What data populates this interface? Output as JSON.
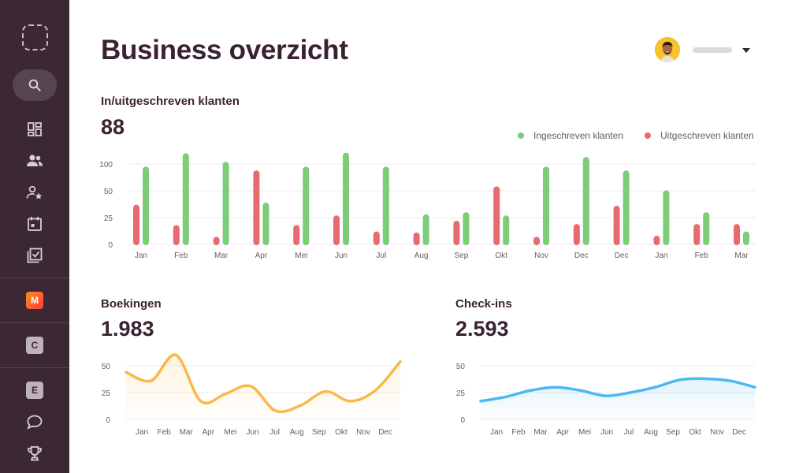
{
  "header": {
    "title": "Business overzicht"
  },
  "colors": {
    "green": "#7ecb78",
    "red": "#e86a6e",
    "orange": "#fbb848",
    "blue": "#4cb8f4",
    "sidebar": "#3b2834"
  },
  "sidebar": {
    "icons": [
      "logo-placeholder",
      "search-icon",
      "dashboard-icon",
      "users-icon",
      "user-star-icon",
      "calendar-icon",
      "checklist-icon"
    ],
    "badges": [
      "M",
      "C",
      "E"
    ],
    "bottom_icons": [
      "chat-icon",
      "trophy-icon"
    ]
  },
  "klanten": {
    "title": "In/uitgeschreven klanten",
    "value": "88",
    "legend_in": "Ingeschreven klanten",
    "legend_out": "Uitgeschreven klanten"
  },
  "boekingen": {
    "title": "Boekingen",
    "value": "1.983"
  },
  "checkins": {
    "title": "Check-ins",
    "value": "2.593"
  },
  "chart_data": [
    {
      "type": "bar",
      "categories": [
        "Jan",
        "Feb",
        "Mar",
        "Apr",
        "Mei",
        "Jun",
        "Jul",
        "Aug",
        "Sep",
        "Okt",
        "Nov",
        "Dec",
        "Dec",
        "Jan",
        "Feb",
        "Mar"
      ],
      "series": [
        {
          "name": "Uitgeschreven klanten",
          "values": [
            37,
            18,
            7,
            88,
            18,
            27,
            12,
            11,
            22,
            58,
            7,
            19,
            36,
            8,
            19,
            19
          ]
        },
        {
          "name": "Ingeschreven klanten",
          "values": [
            95,
            120,
            104,
            39,
            95,
            121,
            95,
            28,
            30,
            27,
            95,
            113,
            88,
            51,
            30,
            12
          ]
        }
      ],
      "yticks": [
        0,
        25,
        50,
        100
      ],
      "grid": true,
      "legend": "top-right"
    },
    {
      "type": "area",
      "title": "Boekingen",
      "categories": [
        "Jan",
        "Feb",
        "Mar",
        "Apr",
        "Mei",
        "Jun",
        "Jul",
        "Aug",
        "Sep",
        "Okt",
        "Nov",
        "Dec"
      ],
      "values": [
        44,
        36,
        60,
        17,
        24,
        31,
        8,
        13,
        26,
        17,
        27,
        54
      ],
      "yticks": [
        0,
        25,
        50
      ],
      "grid": true
    },
    {
      "type": "area",
      "title": "Check-ins",
      "categories": [
        "Jan",
        "Feb",
        "Mar",
        "Apr",
        "Mei",
        "Jun",
        "Jul",
        "Aug",
        "Sep",
        "Okt",
        "Nov",
        "Dec"
      ],
      "values": [
        17,
        21,
        27,
        30,
        27,
        22,
        25,
        30,
        37,
        38,
        36,
        30
      ],
      "yticks": [
        0,
        25,
        50
      ],
      "grid": true
    }
  ]
}
